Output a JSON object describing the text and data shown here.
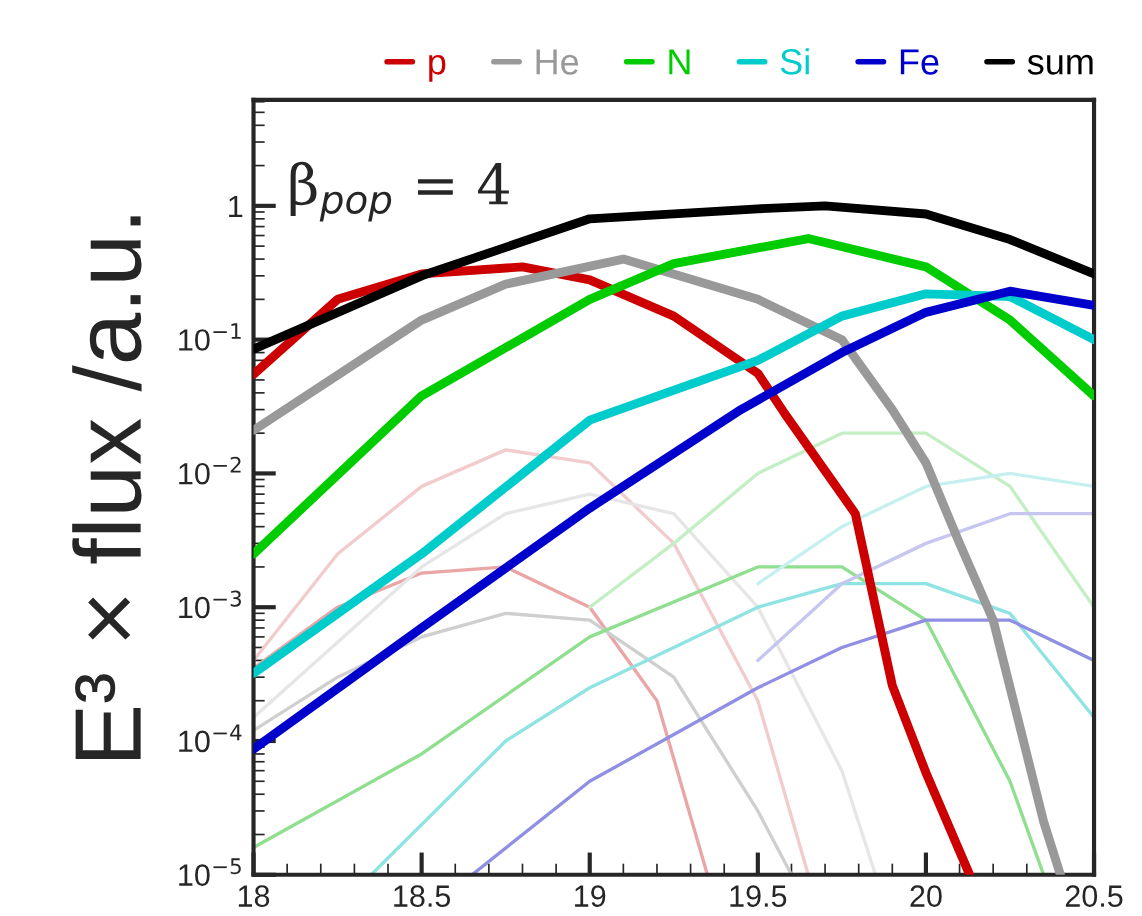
{
  "chart_data": {
    "type": "line",
    "ylabel": "E³ × flux /a.u.",
    "annotations": [
      "β$_{pop}$ = 4"
    ],
    "xlim": [
      18,
      20.5
    ],
    "xticks": [
      18,
      18.5,
      19,
      19.5,
      20,
      20.5
    ],
    "ylim": [
      1e-05,
      6.2
    ],
    "yticks": [
      {
        "value": 1e-05,
        "label": "10$^{−5}$"
      },
      {
        "value": 0.0001,
        "label": "10$^{−4}$"
      },
      {
        "value": 0.001,
        "label": "10$^{−3}$"
      },
      {
        "value": 0.01,
        "label": "10$^{−2}$"
      },
      {
        "value": 0.1,
        "label": "10$^{−1}$"
      },
      {
        "value": 1,
        "label": "1"
      }
    ],
    "log": "y",
    "grid": false,
    "legend": "top",
    "line_style": "solid",
    "marker": "none",
    "series": [
      {
        "color": "#eaa6a6",
        "x": [
          18,
          18.25,
          18.5,
          18.75,
          19,
          19.2,
          19.35
        ],
        "values": [
          0.00035,
          0.001,
          0.0018,
          0.002,
          0.001,
          0.0002,
          1e-05
        ]
      },
      {
        "color": "#f2cccc",
        "x": [
          18,
          18.25,
          18.5,
          18.75,
          19,
          19.25,
          19.5,
          19.65
        ],
        "values": [
          0.0004,
          0.0025,
          0.008,
          0.015,
          0.012,
          0.003,
          0.0002,
          1e-05
        ]
      },
      {
        "color": "#cfcfcf",
        "x": [
          18,
          18.25,
          18.5,
          18.75,
          19,
          19.25,
          19.5,
          19.6
        ],
        "values": [
          0.00012,
          0.0003,
          0.0006,
          0.0009,
          0.0008,
          0.0003,
          3e-05,
          1e-05
        ]
      },
      {
        "color": "#e6e6e6",
        "x": [
          18,
          18.5,
          18.75,
          19,
          19.25,
          19.5,
          19.75,
          19.85
        ],
        "values": [
          0.00015,
          0.002,
          0.005,
          0.007,
          0.005,
          0.001,
          6e-05,
          1e-05
        ]
      },
      {
        "color": "#8fdf8f",
        "x": [
          18,
          18.5,
          19,
          19.5,
          19.75,
          20,
          20.25,
          20.35
        ],
        "values": [
          1.6e-05,
          8e-05,
          0.0006,
          0.002,
          0.002,
          0.0008,
          5e-05,
          1e-05
        ]
      },
      {
        "color": "#c4eec4",
        "x": [
          19,
          19.25,
          19.5,
          19.75,
          20,
          20.25,
          20.5
        ],
        "values": [
          0.001,
          0.003,
          0.01,
          0.02,
          0.02,
          0.008,
          0.001
        ]
      },
      {
        "color": "#8fe3e3",
        "x": [
          18.35,
          18.75,
          19,
          19.5,
          19.75,
          20,
          20.25,
          20.5
        ],
        "values": [
          1e-05,
          0.0001,
          0.00025,
          0.001,
          0.0015,
          0.0015,
          0.0009,
          0.00015
        ]
      },
      {
        "color": "#c6f0f0",
        "x": [
          19.5,
          19.75,
          20,
          20.25,
          20.5
        ],
        "values": [
          0.0015,
          0.004,
          0.008,
          0.01,
          0.008
        ]
      },
      {
        "color": "#8f8fe3",
        "x": [
          18.65,
          19,
          19.5,
          19.75,
          20,
          20.25,
          20.5
        ],
        "values": [
          1e-05,
          5e-05,
          0.00025,
          0.0005,
          0.0008,
          0.0008,
          0.0004
        ]
      },
      {
        "color": "#c6c6f0",
        "x": [
          19.5,
          19.75,
          20,
          20.25,
          20.5
        ],
        "values": [
          0.0004,
          0.0015,
          0.003,
          0.005,
          0.005
        ]
      },
      {
        "name": "p",
        "color": "#cc0000",
        "x": [
          18,
          18.25,
          18.5,
          18.8,
          19,
          19.25,
          19.5,
          19.58,
          19.79,
          19.9,
          20,
          20.13
        ],
        "values": [
          0.055,
          0.2,
          0.31,
          0.35,
          0.28,
          0.15,
          0.056,
          0.028,
          0.005,
          0.00026,
          5.8e-05,
          1e-05
        ]
      },
      {
        "name": "He",
        "color": "#999999",
        "x": [
          18,
          18.5,
          18.75,
          19.1,
          19.5,
          19.75,
          19.9,
          20,
          20.1,
          20.2,
          20.35,
          20.4
        ],
        "values": [
          0.021,
          0.14,
          0.26,
          0.4,
          0.2,
          0.1,
          0.03,
          0.012,
          0.003,
          0.0008,
          2.5e-05,
          1e-05
        ]
      },
      {
        "name": "N",
        "color": "#00cc00",
        "x": [
          18,
          18.5,
          19,
          19.25,
          19.65,
          20,
          20.25,
          20.5
        ],
        "values": [
          0.0025,
          0.038,
          0.2,
          0.37,
          0.57,
          0.35,
          0.14,
          0.038
        ]
      },
      {
        "name": "Si",
        "color": "#00cccc",
        "x": [
          18,
          18.5,
          19,
          19.5,
          19.75,
          20,
          20.25,
          20.5
        ],
        "values": [
          0.00032,
          0.0025,
          0.025,
          0.07,
          0.15,
          0.22,
          0.21,
          0.1
        ]
      },
      {
        "name": "Fe",
        "color": "#0000cc",
        "x": [
          18,
          18.5,
          19,
          19.45,
          19.75,
          20,
          20.25,
          20.5
        ],
        "values": [
          8.7e-05,
          0.0007,
          0.0055,
          0.03,
          0.08,
          0.16,
          0.23,
          0.18
        ]
      },
      {
        "name": "sum",
        "color": "#000000",
        "x": [
          18,
          18.5,
          19,
          19.5,
          19.7,
          20,
          20.25,
          20.5
        ],
        "values": [
          0.085,
          0.3,
          0.8,
          0.95,
          1.0,
          0.87,
          0.56,
          0.31
        ]
      }
    ]
  }
}
